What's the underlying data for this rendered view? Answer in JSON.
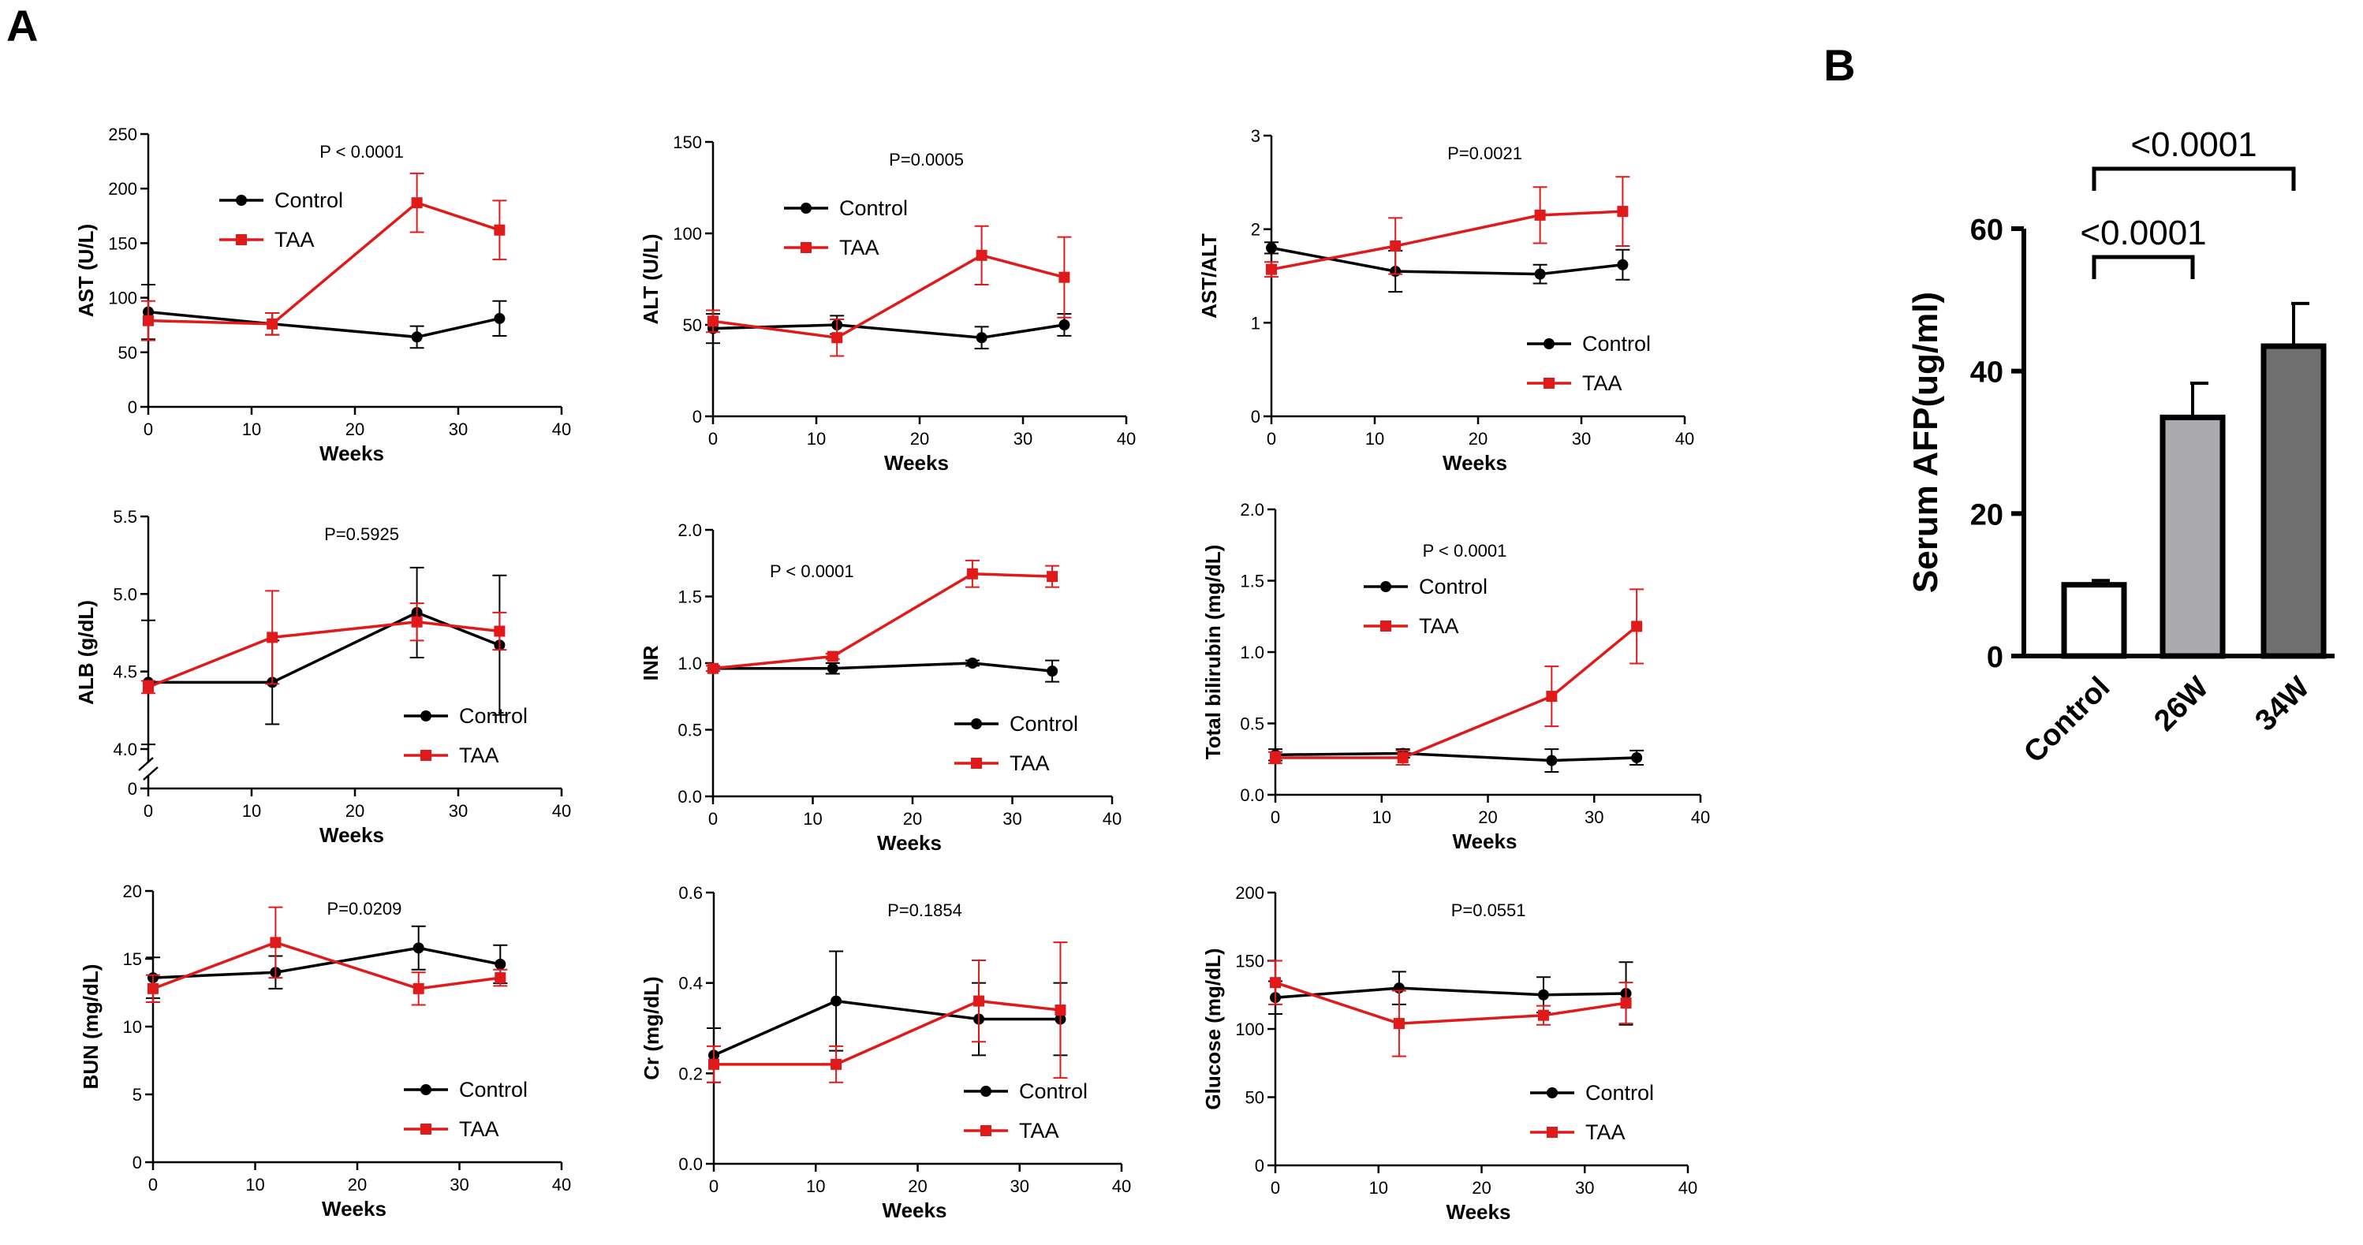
{
  "figure": {
    "panel_a_label": "A",
    "panel_b_label": "B"
  },
  "colors": {
    "control": "#000000",
    "taa": "#e01a1a",
    "bar_control": "#ffffff",
    "bar_26w": "#aaaaaf",
    "bar_34w": "#6f6f6f"
  },
  "legend": {
    "control": "Control",
    "taa": "TAA"
  },
  "chart_data": [
    {
      "id": "ast",
      "type": "line",
      "ylabel": "AST (U/L)",
      "xlabel": "Weeks",
      "pvalue": "P < 0.0001",
      "ylim": [
        0,
        250
      ],
      "yticks": [
        0,
        50,
        100,
        150,
        200,
        250
      ],
      "xlim": [
        0,
        40
      ],
      "xticks": [
        0,
        10,
        20,
        30,
        40
      ],
      "legend_position": "top-left",
      "series": [
        {
          "name": "Control",
          "x": [
            0,
            12,
            26,
            34
          ],
          "y": [
            87,
            76,
            64,
            81
          ],
          "err": [
            25,
            10,
            10,
            16
          ]
        },
        {
          "name": "TAA",
          "x": [
            0,
            12,
            26,
            34
          ],
          "y": [
            79,
            76,
            187,
            162
          ],
          "err": [
            18,
            10,
            27,
            27
          ]
        }
      ]
    },
    {
      "id": "alt",
      "type": "line",
      "ylabel": "ALT (U/L)",
      "xlabel": "Weeks",
      "pvalue": "P=0.0005",
      "ylim": [
        0,
        150
      ],
      "yticks": [
        0,
        50,
        100,
        150
      ],
      "xlim": [
        0,
        40
      ],
      "xticks": [
        0,
        10,
        20,
        30,
        40
      ],
      "legend_position": "top-left",
      "series": [
        {
          "name": "Control",
          "x": [
            0,
            12,
            26,
            34
          ],
          "y": [
            48,
            50,
            43,
            50
          ],
          "err": [
            8,
            5,
            6,
            6
          ]
        },
        {
          "name": "TAA",
          "x": [
            0,
            12,
            26,
            34
          ],
          "y": [
            52,
            43,
            88,
            76
          ],
          "err": [
            6,
            10,
            16,
            22
          ]
        }
      ]
    },
    {
      "id": "astalt",
      "type": "line",
      "ylabel": "AST/ALT",
      "xlabel": "Weeks",
      "pvalue": "P=0.0021",
      "ylim": [
        0,
        3
      ],
      "yticks": [
        0,
        1,
        2,
        3
      ],
      "xlim": [
        0,
        40
      ],
      "xticks": [
        0,
        10,
        20,
        30,
        40
      ],
      "legend_position": "bottom-right",
      "series": [
        {
          "name": "Control",
          "x": [
            0,
            12,
            26,
            34
          ],
          "y": [
            1.8,
            1.55,
            1.52,
            1.62
          ],
          "err": [
            0.06,
            0.22,
            0.1,
            0.16
          ]
        },
        {
          "name": "TAA",
          "x": [
            0,
            12,
            26,
            34
          ],
          "y": [
            1.57,
            1.82,
            2.15,
            2.19
          ],
          "err": [
            0.08,
            0.3,
            0.3,
            0.37
          ]
        }
      ]
    },
    {
      "id": "alb",
      "type": "line",
      "ylabel": "ALB (g/dL)",
      "xlabel": "Weeks",
      "pvalue": "P=0.5925",
      "ylim": [
        4.0,
        5.5
      ],
      "yticks": [
        4.0,
        4.5,
        5.0,
        5.5
      ],
      "extra_ytick": 0,
      "axis_break": true,
      "xlim": [
        0,
        40
      ],
      "xticks": [
        0,
        10,
        20,
        30,
        40
      ],
      "legend_position": "bottom-right",
      "series": [
        {
          "name": "Control",
          "x": [
            0,
            12,
            26,
            34
          ],
          "y": [
            4.43,
            4.43,
            4.88,
            4.67
          ],
          "err": [
            0.4,
            0.27,
            0.29,
            0.45
          ]
        },
        {
          "name": "TAA",
          "x": [
            0,
            12,
            26,
            34
          ],
          "y": [
            4.4,
            4.72,
            4.82,
            4.76
          ],
          "err": [
            0.04,
            0.3,
            0.12,
            0.12
          ]
        }
      ]
    },
    {
      "id": "inr",
      "type": "line",
      "ylabel": "INR",
      "xlabel": "Weeks",
      "pvalue": "P < 0.0001",
      "ylim": [
        0,
        2.0
      ],
      "yticks": [
        0.0,
        0.5,
        1.0,
        1.5,
        2.0
      ],
      "xlim": [
        0,
        40
      ],
      "xticks": [
        0,
        10,
        20,
        30,
        40
      ],
      "legend_position": "bottom-right",
      "series": [
        {
          "name": "Control",
          "x": [
            0,
            12,
            26,
            34
          ],
          "y": [
            0.96,
            0.96,
            1.0,
            0.94
          ],
          "err": [
            0.02,
            0.04,
            0.02,
            0.08
          ]
        },
        {
          "name": "TAA",
          "x": [
            0,
            12,
            26,
            34
          ],
          "y": [
            0.96,
            1.05,
            1.67,
            1.65
          ],
          "err": [
            0.02,
            0.02,
            0.1,
            0.08
          ]
        }
      ]
    },
    {
      "id": "tbil",
      "type": "line",
      "ylabel": "Total bilirubin (mg/dL)",
      "xlabel": "Weeks",
      "pvalue": "P < 0.0001",
      "ylim": [
        0,
        2.0
      ],
      "yticks": [
        0.0,
        0.5,
        1.0,
        1.5,
        2.0
      ],
      "xlim": [
        0,
        40
      ],
      "xticks": [
        0,
        10,
        20,
        30,
        40
      ],
      "legend_position": "top-left",
      "series": [
        {
          "name": "Control",
          "x": [
            0,
            12,
            26,
            34
          ],
          "y": [
            0.28,
            0.29,
            0.24,
            0.26
          ],
          "err": [
            0.04,
            0.03,
            0.08,
            0.05
          ]
        },
        {
          "name": "TAA",
          "x": [
            0,
            12,
            26,
            34
          ],
          "y": [
            0.26,
            0.26,
            0.69,
            1.18
          ],
          "err": [
            0.04,
            0.05,
            0.21,
            0.26
          ]
        }
      ]
    },
    {
      "id": "bun",
      "type": "line",
      "ylabel": "BUN (mg/dL)",
      "xlabel": "Weeks",
      "pvalue": "P=0.0209",
      "ylim": [
        0,
        20
      ],
      "yticks": [
        0,
        5,
        10,
        15,
        20
      ],
      "xlim": [
        0,
        40
      ],
      "xticks": [
        0,
        10,
        20,
        30,
        40
      ],
      "legend_position": "bottom-right",
      "series": [
        {
          "name": "Control",
          "x": [
            0,
            12,
            26,
            34
          ],
          "y": [
            13.6,
            14.0,
            15.8,
            14.6
          ],
          "err": [
            1.5,
            1.2,
            1.6,
            1.4
          ]
        },
        {
          "name": "TAA",
          "x": [
            0,
            12,
            26,
            34
          ],
          "y": [
            12.8,
            16.2,
            12.8,
            13.6
          ],
          "err": [
            1.0,
            2.6,
            1.2,
            0.6
          ]
        }
      ]
    },
    {
      "id": "cr",
      "type": "line",
      "ylabel": "Cr (mg/dL)",
      "xlabel": "Weeks",
      "pvalue": "P=0.1854",
      "ylim": [
        0,
        0.6
      ],
      "yticks": [
        0.0,
        0.2,
        0.4,
        0.6
      ],
      "xlim": [
        0,
        40
      ],
      "xticks": [
        0,
        10,
        20,
        30,
        40
      ],
      "legend_position": "bottom-right",
      "series": [
        {
          "name": "Control",
          "x": [
            0,
            12,
            26,
            34
          ],
          "y": [
            0.24,
            0.36,
            0.32,
            0.32
          ],
          "err": [
            0.06,
            0.11,
            0.08,
            0.08
          ]
        },
        {
          "name": "TAA",
          "x": [
            0,
            12,
            26,
            34
          ],
          "y": [
            0.22,
            0.22,
            0.36,
            0.34
          ],
          "err": [
            0.04,
            0.04,
            0.09,
            0.15
          ]
        }
      ]
    },
    {
      "id": "glu",
      "type": "line",
      "ylabel": "Glucose (mg/dL)",
      "xlabel": "Weeks",
      "pvalue": "P=0.0551",
      "ylim": [
        0,
        200
      ],
      "yticks": [
        0,
        50,
        100,
        150,
        200
      ],
      "xlim": [
        0,
        40
      ],
      "xticks": [
        0,
        10,
        20,
        30,
        40
      ],
      "legend_position": "bottom-right",
      "series": [
        {
          "name": "Control",
          "x": [
            0,
            12,
            26,
            34
          ],
          "y": [
            123,
            130,
            125,
            126
          ],
          "err": [
            12,
            12,
            13,
            23
          ]
        },
        {
          "name": "TAA",
          "x": [
            0,
            12,
            26,
            34
          ],
          "y": [
            134,
            104,
            110,
            119
          ],
          "err": [
            16,
            24,
            7,
            15
          ]
        }
      ]
    },
    {
      "id": "afp",
      "type": "bar",
      "ylabel": "Serum AFP(ug/ml)",
      "categories": [
        "Control",
        "26W",
        "34W"
      ],
      "values": [
        10,
        33.5,
        43.5
      ],
      "err": [
        0.6,
        4.8,
        6.0
      ],
      "ylim": [
        0,
        60
      ],
      "yticks": [
        0,
        20,
        40,
        60
      ],
      "comparisons": [
        {
          "from": 0,
          "to": 1,
          "label": "<0.0001"
        },
        {
          "from": 0,
          "to": 2,
          "label": "<0.0001"
        }
      ]
    }
  ]
}
